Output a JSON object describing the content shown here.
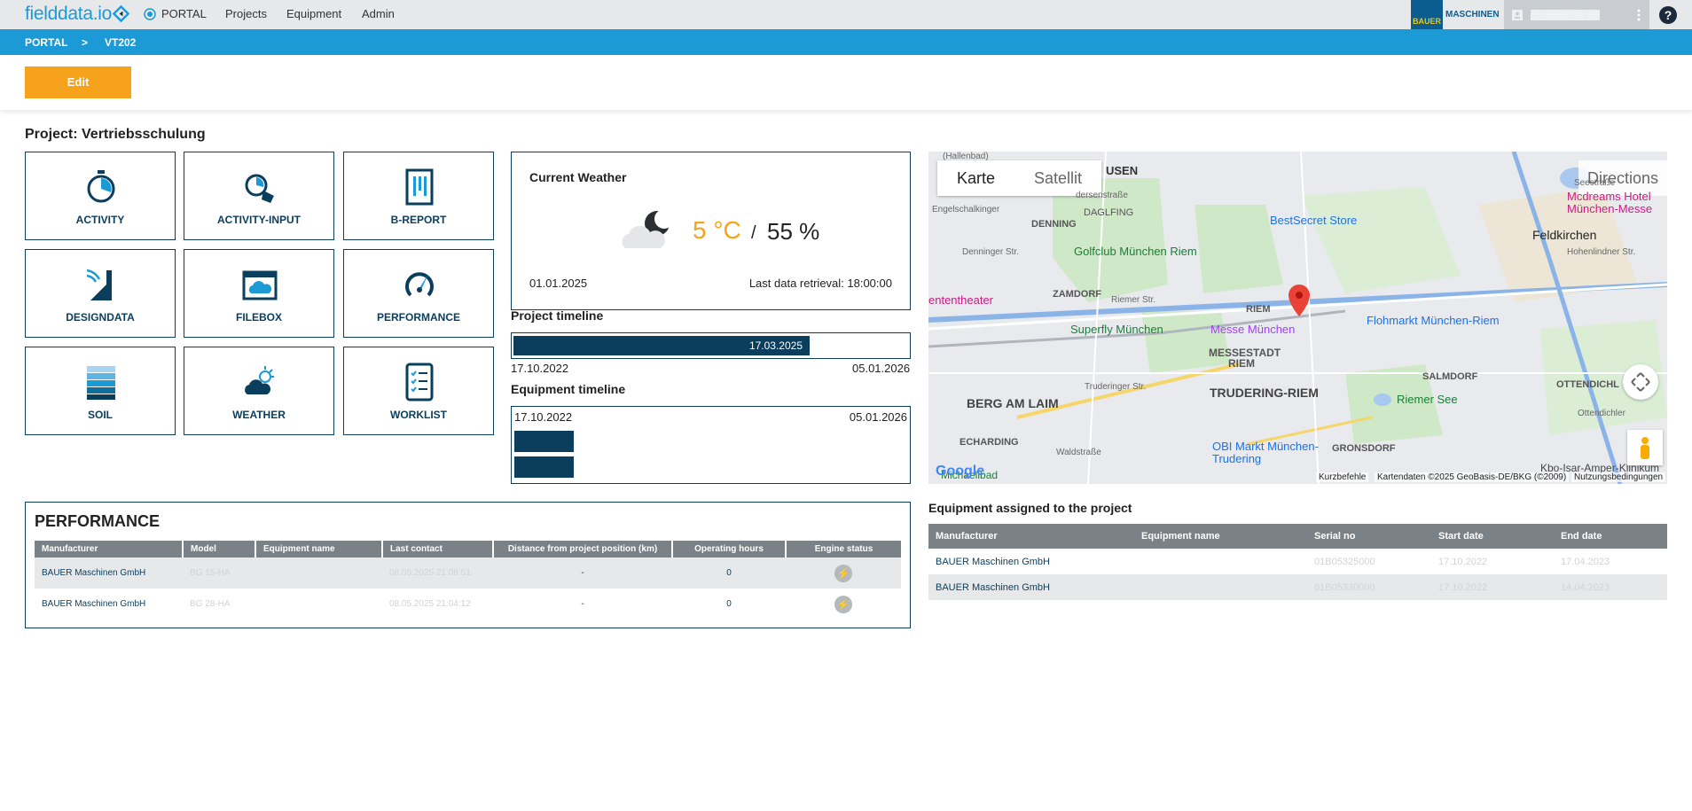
{
  "topbar": {
    "logo": "fielddata.io",
    "portal": "PORTAL",
    "nav": [
      "Projects",
      "Equipment",
      "Admin"
    ],
    "brand_top": "BAUER",
    "brand_bottom": "MASCHINEN",
    "help": "?"
  },
  "breadcrumb": {
    "root": "PORTAL",
    "separator": ">",
    "current": "VT202"
  },
  "toolbar": {
    "edit_label": "Edit"
  },
  "project": {
    "title": "Project: Vertriebsschulung"
  },
  "tiles": [
    "ACTIVITY",
    "ACTIVITY-INPUT",
    "B-REPORT",
    "DESIGNDATA",
    "FILEBOX",
    "PERFORMANCE",
    "SOIL",
    "WEATHER",
    "WORKLIST"
  ],
  "weather": {
    "title": "Current Weather",
    "temperature": "5 °C",
    "separator": "/",
    "humidity": "55 %",
    "date": "01.01.2025",
    "retrieval": "Last data retrieval: 18:00:00"
  },
  "project_timeline": {
    "title": "Project timeline",
    "marker": "17.03.2025",
    "start": "17.10.2022",
    "end": "05.01.2026",
    "progress_fraction": 0.75
  },
  "equipment_timeline": {
    "title": "Equipment timeline",
    "start": "17.10.2022",
    "end": "05.01.2026"
  },
  "map": {
    "tab_map": "Karte",
    "tab_satellite": "Satellit",
    "directions": "Directions",
    "labels": [
      "USEN",
      "DENNING",
      "DAGLFING",
      "ZAMDORF",
      "RIEM",
      "MESSESTADT",
      "RIEM",
      "TRUDERING-RIEM",
      "BERG AM LAIM",
      "SALMDORF",
      "OTTENDICHL",
      "GRONSDORF",
      "ECHARDING",
      "Feldkirchen"
    ],
    "pois": [
      "BestSecret Store",
      "Golfclub München Riem",
      "Messe München",
      "Flohmarkt München-Riem",
      "Superfly München",
      "Riemer See",
      "OBI Markt München-Trudering",
      "Mcdreams Hotel München-Messe",
      "ententheater",
      "Kbo-Isar-Amper-Klinikum"
    ],
    "streets": [
      "Engelschalkinger",
      "Denninger Str.",
      "Riemer Str.",
      "Truderinger Str.",
      "Waldstraße",
      "Seestraße",
      "Hohenlindner Str.",
      "Ottendichler",
      "dersenstraße",
      "(Hallenbad)",
      "Michaelibad"
    ],
    "footer_shortcuts": "Kurzbefehle",
    "footer_data": "Kartendaten ©2025 GeoBasis-DE/BKG (©2009)",
    "footer_terms": "Nutzungsbedingungen",
    "google": "Google"
  },
  "performance": {
    "title": "PERFORMANCE",
    "columns": [
      "Manufacturer",
      "Model",
      "Equipment name",
      "Last contact",
      "Distance from project position (km)",
      "Operating hours",
      "Engine status"
    ],
    "rows": [
      {
        "manufacturer": "BAUER Maschinen GmbH",
        "model": "BG 15-HA",
        "equipment_name": "",
        "last_contact": "08.05.2025 21:08:51",
        "distance": "-",
        "hours": "0",
        "engine": "⚡"
      },
      {
        "manufacturer": "BAUER Maschinen GmbH",
        "model": "BG 28-HA",
        "equipment_name": "",
        "last_contact": "08.05.2025 21:04:12",
        "distance": "-",
        "hours": "0",
        "engine": "⚡"
      }
    ]
  },
  "equipment": {
    "title": "Equipment assigned to the project",
    "columns": [
      "Manufacturer",
      "Equipment name",
      "Serial no",
      "Start date",
      "End date"
    ],
    "rows": [
      {
        "manufacturer": "BAUER Maschinen GmbH",
        "equipment_name": "",
        "serial": "01B05325000",
        "start": "17.10.2022",
        "end": "17.04.2023"
      },
      {
        "manufacturer": "BAUER Maschinen GmbH",
        "equipment_name": "",
        "serial": "01B05330000",
        "start": "17.10.2022",
        "end": "14.04.2023"
      }
    ]
  },
  "colors": {
    "primary": "#1b9ad6",
    "accent": "#f7a21b",
    "navy": "#0b3d5c"
  }
}
